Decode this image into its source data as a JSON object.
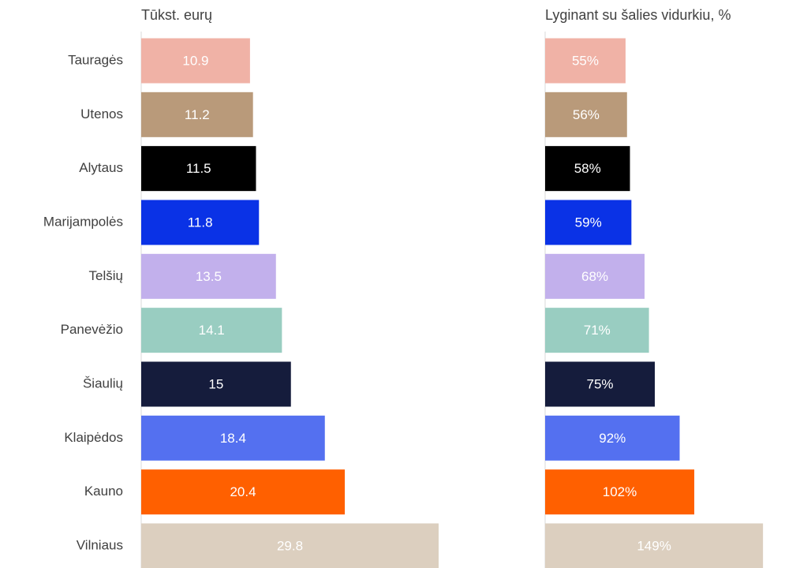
{
  "chart_data": [
    {
      "type": "bar",
      "orientation": "horizontal",
      "title": "Tūkst. eurų",
      "categories": [
        "Tauragės",
        "Utenos",
        "Alytaus",
        "Marijampolės",
        "Telšių",
        "Panevėžio",
        "Šiaulių",
        "Klaipėdos",
        "Kauno",
        "Vilniaus"
      ],
      "values": [
        10.9,
        11.2,
        11.5,
        11.8,
        13.5,
        14.1,
        15,
        18.4,
        20.4,
        29.8
      ],
      "colors": [
        "#f0b2a6",
        "#b99a7a",
        "#000000",
        "#0a32e6",
        "#c2b0ec",
        "#99cdc1",
        "#151c3c",
        "#5470f0",
        "#ff6000",
        "#dccfbf"
      ],
      "xlim": [
        0,
        30
      ]
    },
    {
      "type": "bar",
      "orientation": "horizontal",
      "title": "Lyginant su šalies vidurkiu, %",
      "values": [
        55,
        56,
        58,
        59,
        68,
        71,
        75,
        92,
        102,
        149
      ],
      "value_labels": [
        "55%",
        "56%",
        "58%",
        "59%",
        "68%",
        "71%",
        "75%",
        "92%",
        "102%",
        "149%"
      ],
      "colors": [
        "#f0b2a6",
        "#b99a7a",
        "#000000",
        "#0a32e6",
        "#c2b0ec",
        "#99cdc1",
        "#151c3c",
        "#5470f0",
        "#ff6000",
        "#dccfbf"
      ],
      "xlim": [
        0,
        150
      ]
    }
  ]
}
